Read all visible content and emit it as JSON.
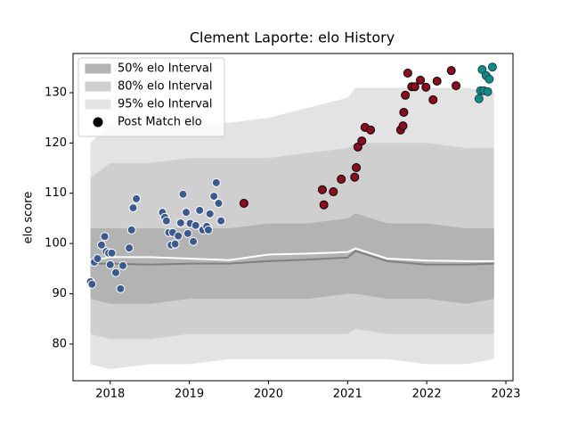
{
  "chart_data": {
    "type": "scatter",
    "title": "Clement Laporte: elo History",
    "y_label": "elo score",
    "xlim": [
      2017.53,
      2023.09
    ],
    "xticks": [
      2018,
      2019,
      2020,
      2021,
      2022,
      2023
    ],
    "ylim": [
      72.7,
      137.8
    ],
    "yticks": [
      80,
      90,
      100,
      110,
      120,
      130
    ],
    "legend": "upper left",
    "band_x": [
      2017.75,
      2018.0,
      2018.5,
      2019.0,
      2019.5,
      2020.0,
      2020.5,
      2021.0,
      2021.1,
      2021.5,
      2022.0,
      2022.5,
      2022.85
    ],
    "bands": [
      {
        "name": "95% elo Interval",
        "color": "#e3e3e3",
        "upper": [
          120,
          124,
          123,
          124,
          124,
          125,
          127,
          129,
          131,
          131,
          131,
          131,
          130
        ],
        "lower": [
          76,
          75,
          76,
          76,
          77,
          77,
          77,
          77,
          77,
          77,
          76,
          76,
          77
        ]
      },
      {
        "name": "80% elo Interval",
        "color": "#cfcfcf",
        "upper": [
          113,
          116,
          116,
          117,
          117,
          117,
          118,
          119,
          120,
          120,
          120,
          119,
          119
        ],
        "lower": [
          82,
          81,
          81,
          82,
          82,
          82,
          82,
          82,
          83,
          82,
          82,
          82,
          82
        ]
      },
      {
        "name": "50% elo Interval",
        "color": "#b3b3b3",
        "upper": [
          103,
          103,
          103,
          103,
          103,
          104,
          104,
          105,
          106,
          104,
          104,
          103,
          103
        ],
        "lower": [
          89,
          88,
          88,
          89,
          89,
          89,
          89,
          90,
          90,
          89,
          89,
          88,
          89
        ]
      }
    ],
    "lines": [
      {
        "color": "#ffffff",
        "values": [
          96.5,
          97.3,
          97.3,
          97.0,
          96.7,
          97.8,
          98.0,
          98.3,
          99.0,
          97.0,
          96.6,
          96.5,
          96.5
        ]
      },
      {
        "color": "#808080",
        "values": [
          96,
          96,
          95.8,
          96,
          96,
          96.5,
          96.8,
          97.2,
          98.5,
          96.5,
          95.8,
          95.8,
          96
        ]
      }
    ],
    "scatter": {
      "name": "Post Match elo",
      "color": "#000000",
      "groups": [
        {
          "color": "#3d5a8f",
          "edge": "#ffffff",
          "x": [
            2017.75,
            2017.77,
            2017.8,
            2017.84,
            2017.89,
            2017.93,
            2017.95,
            2017.98,
            2018.02,
            2018.0,
            2018.07,
            2018.13,
            2018.16,
            2018.24,
            2018.27,
            2018.29,
            2018.33,
            2018.66,
            2018.69,
            2018.71,
            2018.74,
            2018.77,
            2018.79,
            2018.82,
            2018.86,
            2018.89,
            2018.92,
            2018.96,
            2018.98,
            2019.01,
            2019.05,
            2019.08,
            2019.13,
            2019.17,
            2019.22,
            2019.24,
            2019.26,
            2019.31,
            2019.34,
            2019.37,
            2019.4
          ],
          "values": [
            92.4,
            91.9,
            96.3,
            97.0,
            99.7,
            101.4,
            98.4,
            98.1,
            98.1,
            95.8,
            94.2,
            91.0,
            95.6,
            99.1,
            102.7,
            107.1,
            108.9,
            106.2,
            105.2,
            104.5,
            102.2,
            99.7,
            102.2,
            99.9,
            101.5,
            104.1,
            109.8,
            106.2,
            102.0,
            104.0,
            100.4,
            103.6,
            106.6,
            102.7,
            103.4,
            102.7,
            105.9,
            109.4,
            112.1,
            108.0,
            104.5
          ]
        },
        {
          "color": "#8b0d1f",
          "edge": "#000000",
          "x": [
            2019.69,
            2020.68,
            2020.7,
            2020.82,
            2020.92,
            2021.09,
            2021.11,
            2021.13,
            2021.18,
            2021.22,
            2021.29,
            2021.67,
            2021.7,
            2021.71,
            2021.73,
            2021.76,
            2021.81,
            2021.85,
            2021.92,
            2021.99,
            2022.08,
            2022.13,
            2022.31,
            2022.37
          ],
          "values": [
            108.0,
            110.7,
            107.7,
            110.3,
            112.8,
            113.2,
            115.1,
            119.2,
            120.4,
            123.1,
            122.6,
            122.6,
            123.4,
            126.1,
            129.5,
            133.9,
            131.2,
            131.2,
            132.5,
            131.1,
            128.6,
            132.3,
            134.4,
            131.4
          ]
        },
        {
          "color": "#138a8a",
          "edge": "#164848",
          "x": [
            2022.66,
            2022.68,
            2022.7,
            2022.72,
            2022.75,
            2022.77,
            2022.79,
            2022.83
          ],
          "values": [
            128.8,
            130.4,
            134.6,
            130.4,
            133.4,
            130.2,
            132.7,
            135.1
          ]
        }
      ]
    }
  }
}
